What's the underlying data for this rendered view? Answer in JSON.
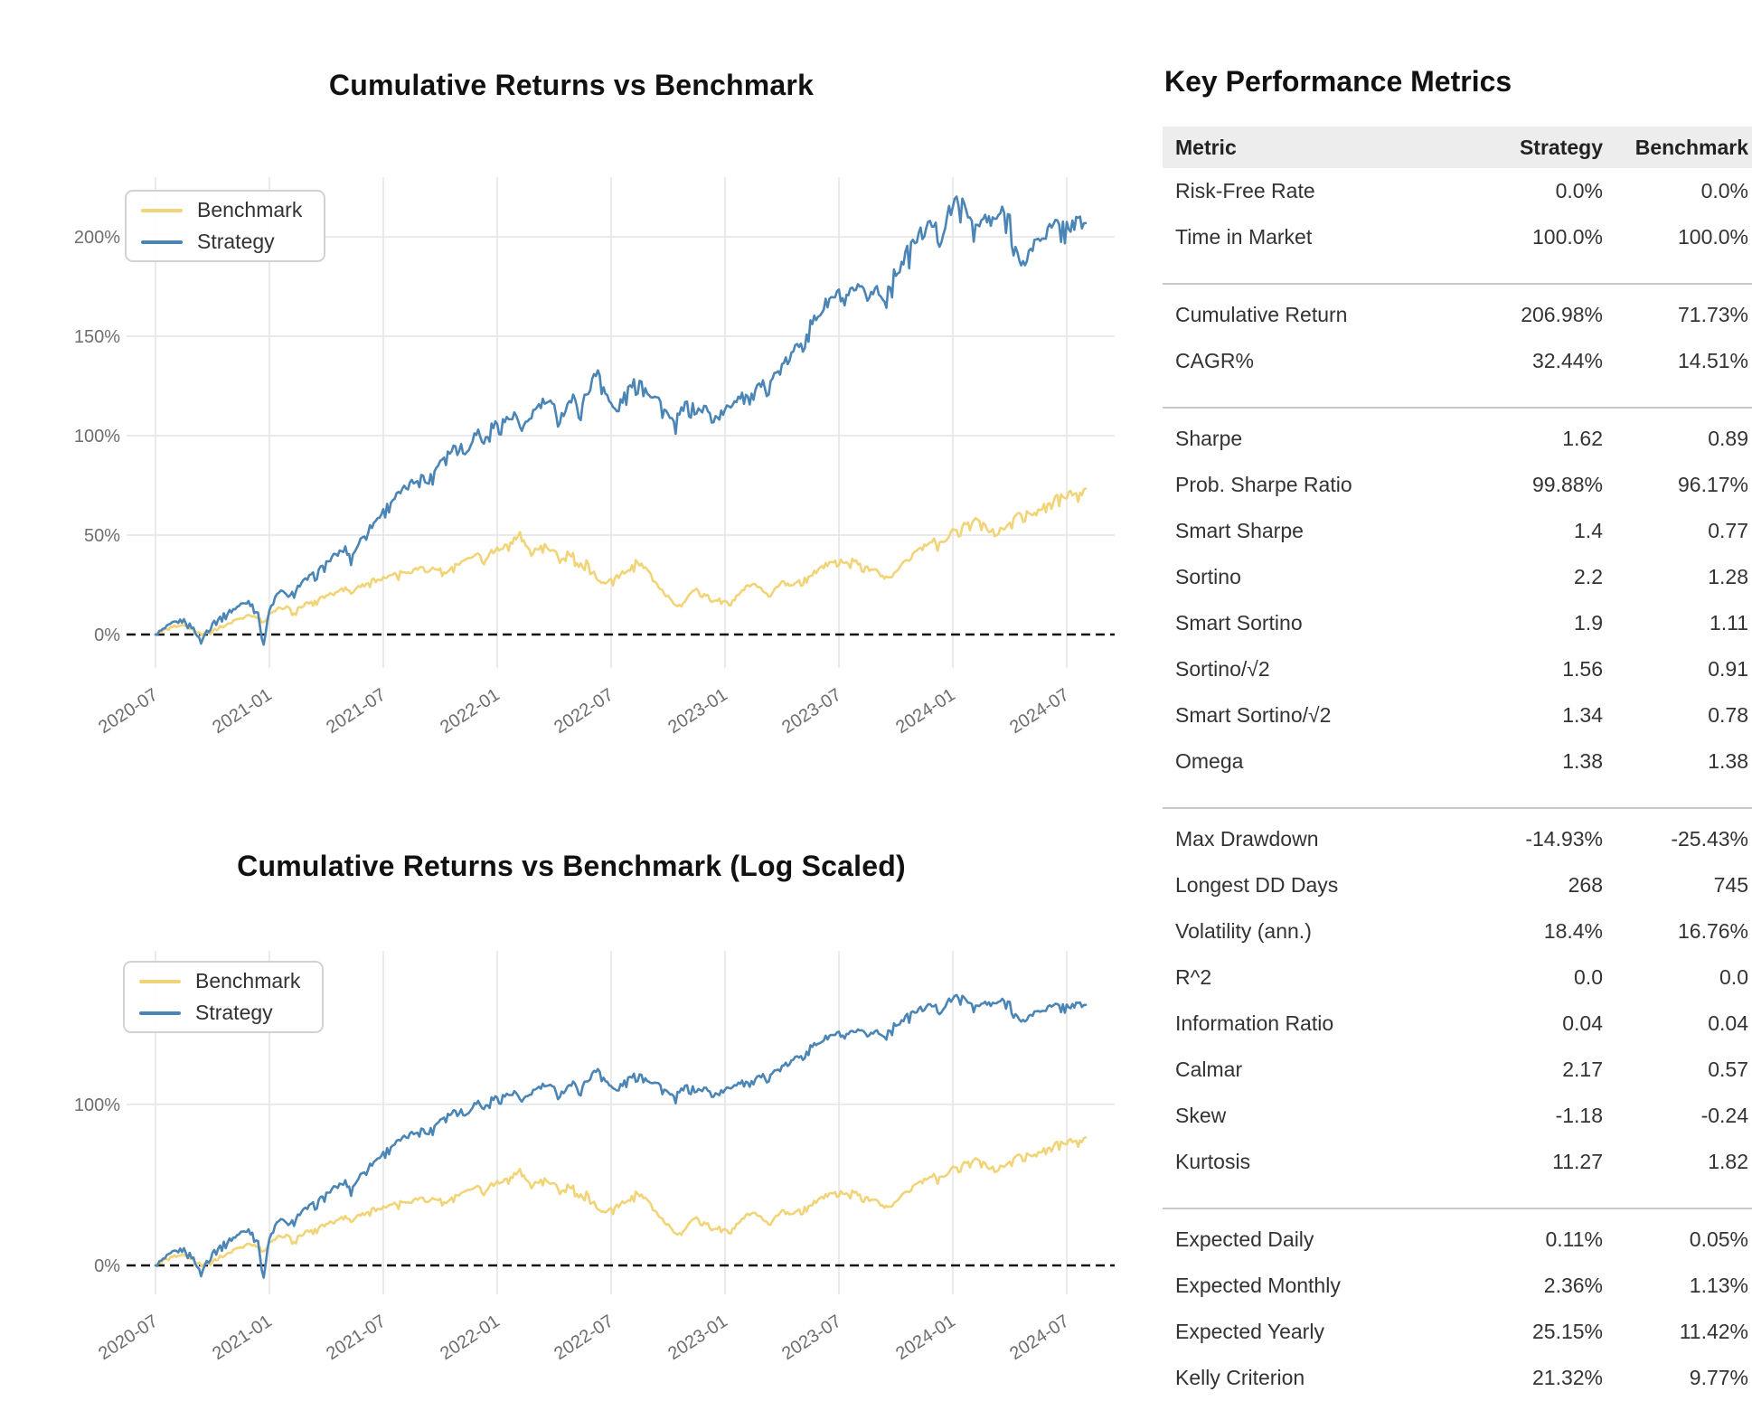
{
  "charts": [
    {
      "title": "Cumulative Returns vs Benchmark",
      "scale": "linear",
      "legend": [
        "Benchmark",
        "Strategy"
      ],
      "y_ticks": [
        {
          "v": 0,
          "label": "0%"
        },
        {
          "v": 50,
          "label": "50%"
        },
        {
          "v": 100,
          "label": "100%"
        },
        {
          "v": 150,
          "label": "150%"
        },
        {
          "v": 200,
          "label": "200%"
        }
      ],
      "x_ticks": [
        "2020-07",
        "2021-01",
        "2021-07",
        "2022-01",
        "2022-07",
        "2023-01",
        "2023-07",
        "2024-01",
        "2024-07"
      ]
    },
    {
      "title": "Cumulative Returns vs Benchmark (Log Scaled)",
      "scale": "log",
      "legend": [
        "Benchmark",
        "Strategy"
      ],
      "y_ticks": [
        {
          "v": 0,
          "label": "0%"
        },
        {
          "v": 100,
          "label": "100%"
        }
      ],
      "x_ticks": [
        "2020-07",
        "2021-01",
        "2021-07",
        "2022-01",
        "2022-07",
        "2023-01",
        "2023-07",
        "2024-01",
        "2024-07"
      ]
    }
  ],
  "chart_data": {
    "type": "line",
    "x_unit": "months since 2020-07",
    "x_range": [
      0,
      49
    ],
    "ylabel": "Cumulative Return (%)",
    "grid": true,
    "zero_line": "dashed-black",
    "series": [
      {
        "name": "Benchmark",
        "color": "#f2d478",
        "end_value_pct": 71.73,
        "points": [
          [
            0,
            0
          ],
          [
            0.5,
            2
          ],
          [
            1,
            4
          ],
          [
            1.5,
            5
          ],
          [
            2,
            2
          ],
          [
            2.4,
            0
          ],
          [
            3,
            2
          ],
          [
            3.5,
            4
          ],
          [
            4,
            6
          ],
          [
            4.5,
            8
          ],
          [
            5,
            10
          ],
          [
            5.4,
            8
          ],
          [
            5.7,
            6
          ],
          [
            6,
            10
          ],
          [
            6.5,
            13
          ],
          [
            7,
            14
          ],
          [
            7.3,
            11
          ],
          [
            7.7,
            14
          ],
          [
            8,
            16
          ],
          [
            8.5,
            17
          ],
          [
            9,
            19
          ],
          [
            9.5,
            21
          ],
          [
            10,
            23
          ],
          [
            10.3,
            21
          ],
          [
            10.7,
            24
          ],
          [
            11,
            25
          ],
          [
            11.5,
            27
          ],
          [
            12,
            28
          ],
          [
            12.5,
            30
          ],
          [
            13,
            31
          ],
          [
            13.5,
            32
          ],
          [
            14,
            34
          ],
          [
            14.3,
            31
          ],
          [
            14.7,
            33
          ],
          [
            15,
            33
          ],
          [
            15.3,
            30
          ],
          [
            15.7,
            34
          ],
          [
            16,
            36
          ],
          [
            16.5,
            38
          ],
          [
            17,
            40
          ],
          [
            17.3,
            36
          ],
          [
            17.7,
            41
          ],
          [
            18,
            43
          ],
          [
            18.5,
            45
          ],
          [
            19,
            48
          ],
          [
            19.2,
            50
          ],
          [
            19.5,
            44
          ],
          [
            19.8,
            40
          ],
          [
            20,
            42
          ],
          [
            20.5,
            45
          ],
          [
            21,
            42
          ],
          [
            21.3,
            37
          ],
          [
            21.7,
            41
          ],
          [
            22,
            40
          ],
          [
            22.3,
            34
          ],
          [
            22.7,
            36
          ],
          [
            23,
            32
          ],
          [
            23.3,
            28
          ],
          [
            23.7,
            25
          ],
          [
            24,
            27
          ],
          [
            24.5,
            30
          ],
          [
            25,
            33
          ],
          [
            25.3,
            36
          ],
          [
            25.7,
            34
          ],
          [
            26,
            31
          ],
          [
            26.3,
            26
          ],
          [
            26.7,
            22
          ],
          [
            27,
            19
          ],
          [
            27.3,
            15
          ],
          [
            27.7,
            14
          ],
          [
            28,
            18
          ],
          [
            28.5,
            23
          ],
          [
            29,
            20
          ],
          [
            29.3,
            17
          ],
          [
            29.7,
            18
          ],
          [
            30,
            17
          ],
          [
            30.3,
            15
          ],
          [
            30.7,
            20
          ],
          [
            31,
            23
          ],
          [
            31.5,
            25
          ],
          [
            32,
            22
          ],
          [
            32.3,
            19
          ],
          [
            32.7,
            23
          ],
          [
            33,
            26
          ],
          [
            33.5,
            25
          ],
          [
            34,
            27
          ],
          [
            34.5,
            30
          ],
          [
            35,
            33
          ],
          [
            35.5,
            36
          ],
          [
            36,
            38
          ],
          [
            36.3,
            35
          ],
          [
            36.7,
            37
          ],
          [
            37,
            36
          ],
          [
            37.5,
            33
          ],
          [
            38,
            32
          ],
          [
            38.3,
            29
          ],
          [
            38.7,
            28
          ],
          [
            39,
            32
          ],
          [
            39.5,
            36
          ],
          [
            40,
            41
          ],
          [
            40.5,
            44
          ],
          [
            41,
            47
          ],
          [
            41.3,
            45
          ],
          [
            41.7,
            49
          ],
          [
            42,
            52
          ],
          [
            42.5,
            54
          ],
          [
            43,
            57
          ],
          [
            43.3,
            58
          ],
          [
            43.7,
            54
          ],
          [
            44,
            52
          ],
          [
            44.3,
            50
          ],
          [
            44.7,
            54
          ],
          [
            45,
            57
          ],
          [
            45.5,
            60
          ],
          [
            46,
            62
          ],
          [
            46.3,
            60
          ],
          [
            46.7,
            64
          ],
          [
            47,
            66
          ],
          [
            47.5,
            69
          ],
          [
            48,
            70
          ],
          [
            48.5,
            71
          ],
          [
            49,
            72
          ]
        ]
      },
      {
        "name": "Strategy",
        "color": "#4a85b5",
        "end_value_pct": 206.98,
        "points": [
          [
            0,
            0
          ],
          [
            0.5,
            3
          ],
          [
            1,
            6
          ],
          [
            1.5,
            7
          ],
          [
            2,
            3
          ],
          [
            2.4,
            -4
          ],
          [
            2.7,
            2
          ],
          [
            3,
            6
          ],
          [
            3.5,
            9
          ],
          [
            4,
            12
          ],
          [
            4.5,
            15
          ],
          [
            5,
            17
          ],
          [
            5.4,
            10
          ],
          [
            5.7,
            -5
          ],
          [
            6,
            12
          ],
          [
            6.4,
            20
          ],
          [
            6.8,
            22
          ],
          [
            7,
            18
          ],
          [
            7.5,
            24
          ],
          [
            8,
            28
          ],
          [
            8.5,
            31
          ],
          [
            9,
            36
          ],
          [
            9.5,
            40
          ],
          [
            10,
            43
          ],
          [
            10.3,
            38
          ],
          [
            10.7,
            46
          ],
          [
            11,
            50
          ],
          [
            11.5,
            56
          ],
          [
            12,
            62
          ],
          [
            12.5,
            68
          ],
          [
            13,
            72
          ],
          [
            13.5,
            76
          ],
          [
            14,
            80
          ],
          [
            14.3,
            76
          ],
          [
            14.7,
            82
          ],
          [
            15,
            88
          ],
          [
            15.5,
            92
          ],
          [
            16,
            97
          ],
          [
            16.3,
            90
          ],
          [
            16.7,
            99
          ],
          [
            17,
            102
          ],
          [
            17.3,
            96
          ],
          [
            17.7,
            104
          ],
          [
            18,
            106
          ],
          [
            18.5,
            108
          ],
          [
            19,
            110
          ],
          [
            19.3,
            101
          ],
          [
            19.7,
            109
          ],
          [
            20,
            113
          ],
          [
            20.5,
            117
          ],
          [
            21,
            114
          ],
          [
            21.3,
            108
          ],
          [
            21.7,
            116
          ],
          [
            22,
            119
          ],
          [
            22.3,
            111
          ],
          [
            22.7,
            121
          ],
          [
            23,
            127
          ],
          [
            23.3,
            133
          ],
          [
            23.7,
            122
          ],
          [
            24,
            115
          ],
          [
            24.3,
            112
          ],
          [
            24.7,
            120
          ],
          [
            25,
            124
          ],
          [
            25.5,
            128
          ],
          [
            26,
            122
          ],
          [
            26.5,
            118
          ],
          [
            27,
            110
          ],
          [
            27.3,
            105
          ],
          [
            27.7,
            112
          ],
          [
            28,
            116
          ],
          [
            28.5,
            112
          ],
          [
            29,
            114
          ],
          [
            29.3,
            108
          ],
          [
            29.7,
            110
          ],
          [
            30,
            112
          ],
          [
            30.5,
            118
          ],
          [
            31,
            122
          ],
          [
            31.3,
            117
          ],
          [
            31.7,
            123
          ],
          [
            32,
            125
          ],
          [
            32.5,
            129
          ],
          [
            33,
            134
          ],
          [
            33.5,
            140
          ],
          [
            34,
            148
          ],
          [
            34.5,
            155
          ],
          [
            35,
            162
          ],
          [
            35.5,
            168
          ],
          [
            36,
            171
          ],
          [
            36.3,
            166
          ],
          [
            36.7,
            172
          ],
          [
            37,
            173
          ],
          [
            37.5,
            170
          ],
          [
            38,
            174
          ],
          [
            38.3,
            168
          ],
          [
            38.7,
            176
          ],
          [
            39,
            182
          ],
          [
            39.5,
            190
          ],
          [
            40,
            198
          ],
          [
            40.5,
            203
          ],
          [
            41,
            207
          ],
          [
            41.3,
            197
          ],
          [
            41.7,
            210
          ],
          [
            42,
            215
          ],
          [
            42.3,
            219
          ],
          [
            42.7,
            212
          ],
          [
            43,
            209
          ],
          [
            43.3,
            204
          ],
          [
            43.7,
            210
          ],
          [
            44,
            206
          ],
          [
            44.5,
            212
          ],
          [
            45,
            210
          ],
          [
            45.3,
            195
          ],
          [
            45.6,
            183
          ],
          [
            46,
            192
          ],
          [
            46.5,
            199
          ],
          [
            47,
            203
          ],
          [
            47.5,
            206
          ],
          [
            48,
            205
          ],
          [
            48.5,
            207
          ],
          [
            49,
            207
          ]
        ]
      }
    ]
  },
  "metrics": {
    "title": "Key Performance Metrics",
    "columns": [
      "Metric",
      "Strategy",
      "Benchmark"
    ],
    "groups": [
      [
        {
          "label": "Risk-Free Rate",
          "strategy": "0.0%",
          "benchmark": "0.0%"
        },
        {
          "label": "Time in Market",
          "strategy": "100.0%",
          "benchmark": "100.0%"
        }
      ],
      [
        {
          "label": "Cumulative Return",
          "strategy": "206.98%",
          "benchmark": "71.73%"
        },
        {
          "label": "CAGR%",
          "strategy": "32.44%",
          "benchmark": "14.51%"
        }
      ],
      [
        {
          "label": "Sharpe",
          "strategy": "1.62",
          "benchmark": "0.89"
        },
        {
          "label": "Prob. Sharpe Ratio",
          "strategy": "99.88%",
          "benchmark": "96.17%"
        },
        {
          "label": "Smart Sharpe",
          "strategy": "1.4",
          "benchmark": "0.77"
        },
        {
          "label": "Sortino",
          "strategy": "2.2",
          "benchmark": "1.28"
        },
        {
          "label": "Smart Sortino",
          "strategy": "1.9",
          "benchmark": "1.11"
        },
        {
          "label": "Sortino/√2",
          "strategy": "1.56",
          "benchmark": "0.91"
        },
        {
          "label": "Smart Sortino/√2",
          "strategy": "1.34",
          "benchmark": "0.78"
        },
        {
          "label": "Omega",
          "strategy": "1.38",
          "benchmark": "1.38"
        }
      ],
      [
        {
          "label": "Max Drawdown",
          "strategy": "-14.93%",
          "benchmark": "-25.43%"
        },
        {
          "label": "Longest DD Days",
          "strategy": "268",
          "benchmark": "745"
        },
        {
          "label": "Volatility (ann.)",
          "strategy": "18.4%",
          "benchmark": "16.76%"
        },
        {
          "label": "R^2",
          "strategy": "0.0",
          "benchmark": "0.0"
        },
        {
          "label": "Information Ratio",
          "strategy": "0.04",
          "benchmark": "0.04"
        },
        {
          "label": "Calmar",
          "strategy": "2.17",
          "benchmark": "0.57"
        },
        {
          "label": "Skew",
          "strategy": "-1.18",
          "benchmark": "-0.24"
        },
        {
          "label": "Kurtosis",
          "strategy": "11.27",
          "benchmark": "1.82"
        }
      ],
      [
        {
          "label": "Expected Daily",
          "strategy": "0.11%",
          "benchmark": "0.05%"
        },
        {
          "label": "Expected Monthly",
          "strategy": "2.36%",
          "benchmark": "1.13%"
        },
        {
          "label": "Expected Yearly",
          "strategy": "25.15%",
          "benchmark": "11.42%"
        },
        {
          "label": "Kelly Criterion",
          "strategy": "21.32%",
          "benchmark": "9.77%"
        }
      ]
    ]
  },
  "colors": {
    "strategy": "#4a85b5",
    "benchmark": "#f2d478",
    "grid": "#e3e3e3",
    "zero_line": "#111111",
    "tick_label": "#6e6e6e",
    "header_bg": "#ededed",
    "separator": "#c9c9c9"
  }
}
